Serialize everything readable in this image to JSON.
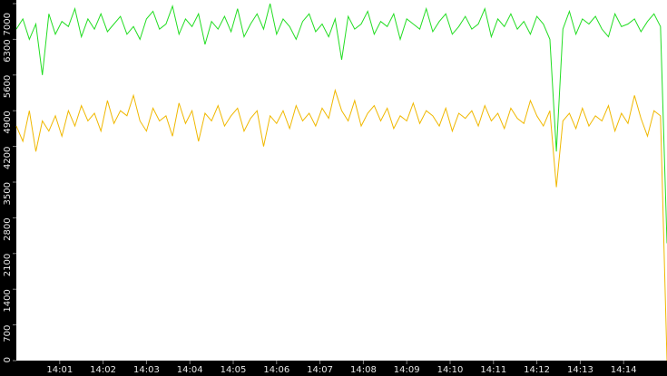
{
  "chart_data": {
    "type": "line",
    "x": [
      840,
      840.15,
      840.3,
      840.45,
      840.6,
      840.75,
      840.9,
      841.05,
      841.2,
      841.35,
      841.5,
      841.65,
      841.8,
      841.95,
      842.1,
      842.25,
      842.4,
      842.55,
      842.7,
      842.85,
      843,
      843.15,
      843.3,
      843.45,
      843.6,
      843.75,
      843.9,
      844.05,
      844.2,
      844.35,
      844.5,
      844.65,
      844.8,
      844.95,
      845.1,
      845.25,
      845.4,
      845.55,
      845.7,
      845.85,
      846,
      846.15,
      846.3,
      846.45,
      846.6,
      846.75,
      846.9,
      847.05,
      847.2,
      847.35,
      847.5,
      847.65,
      847.8,
      847.95,
      848.1,
      848.25,
      848.4,
      848.55,
      848.7,
      848.85,
      849,
      849.15,
      849.3,
      849.45,
      849.6,
      849.75,
      849.9,
      850.05,
      850.2,
      850.35,
      850.5,
      850.65,
      850.8,
      850.95,
      851.1,
      851.25,
      851.4,
      851.55,
      851.7,
      851.85,
      852,
      852.15,
      852.3,
      852.45,
      852.6,
      852.75,
      852.9,
      853.05,
      853.2,
      853.35,
      853.5,
      853.65,
      853.8,
      853.95,
      854.1,
      854.25,
      854.4,
      854.55,
      854.7,
      854.85,
      855
    ],
    "series": [
      {
        "color": "#22dd22",
        "values": [
          6500,
          6700,
          6300,
          6600,
          5600,
          6800,
          6400,
          6650,
          6550,
          6900,
          6350,
          6700,
          6500,
          6800,
          6450,
          6600,
          6750,
          6400,
          6550,
          6300,
          6700,
          6850,
          6500,
          6600,
          6950,
          6400,
          6700,
          6550,
          6800,
          6200,
          6650,
          6500,
          6750,
          6450,
          6900,
          6350,
          6600,
          6800,
          6500,
          7000,
          6400,
          6700,
          6550,
          6300,
          6650,
          6800,
          6450,
          6600,
          6350,
          6700,
          5900,
          6750,
          6500,
          6600,
          6850,
          6400,
          6650,
          6550,
          6800,
          6300,
          6700,
          6600,
          6500,
          6900,
          6450,
          6650,
          6800,
          6400,
          6550,
          6750,
          6500,
          6600,
          6900,
          6350,
          6700,
          6550,
          6800,
          6500,
          6650,
          6400,
          6750,
          6600,
          6300,
          4100,
          6500,
          6850,
          6400,
          6700,
          6600,
          6750,
          6500,
          6350,
          6800,
          6550,
          6600,
          6700,
          6450,
          6650,
          6800,
          6550,
          2300
        ]
      },
      {
        "color": "#f0b800",
        "values": [
          4600,
          4300,
          4900,
          4100,
          4700,
          4500,
          4800,
          4400,
          4900,
          4600,
          5000,
          4700,
          4850,
          4500,
          5100,
          4650,
          4900,
          4800,
          5200,
          4700,
          4500,
          4950,
          4700,
          4800,
          4400,
          5050,
          4650,
          4900,
          4300,
          4850,
          4700,
          5000,
          4600,
          4800,
          4950,
          4500,
          4750,
          4900,
          4200,
          4800,
          4650,
          4900,
          4550,
          5000,
          4700,
          4850,
          4600,
          4950,
          4750,
          5300,
          4900,
          4700,
          5100,
          4600,
          4850,
          5000,
          4700,
          4950,
          4550,
          4800,
          4700,
          5050,
          4650,
          4900,
          4800,
          4600,
          4950,
          4500,
          4850,
          4750,
          4900,
          4600,
          5000,
          4700,
          4850,
          4550,
          4950,
          4750,
          4650,
          5100,
          4800,
          4600,
          4900,
          3400,
          4700,
          4850,
          4550,
          4950,
          4600,
          4800,
          4700,
          5000,
          4500,
          4850,
          4650,
          5200,
          4750,
          4400,
          4900,
          4800,
          0
        ]
      }
    ],
    "xlim": [
      840,
      855
    ],
    "xticks": [
      {
        "value": 841,
        "label": "14:01"
      },
      {
        "value": 842,
        "label": "14:02"
      },
      {
        "value": 843,
        "label": "14:03"
      },
      {
        "value": 844,
        "label": "14:04"
      },
      {
        "value": 845,
        "label": "14:05"
      },
      {
        "value": 846,
        "label": "14:06"
      },
      {
        "value": 847,
        "label": "14:07"
      },
      {
        "value": 848,
        "label": "14:08"
      },
      {
        "value": 849,
        "label": "14:09"
      },
      {
        "value": 850,
        "label": "14:10"
      },
      {
        "value": 851,
        "label": "14:11"
      },
      {
        "value": 852,
        "label": "14:12"
      },
      {
        "value": 853,
        "label": "14:13"
      },
      {
        "value": 854,
        "label": "14:14"
      }
    ],
    "ylim": [
      0,
      7000
    ],
    "yticks": [
      0,
      700,
      1400,
      2100,
      2800,
      3500,
      4200,
      4900,
      5600,
      6300,
      7000
    ]
  }
}
